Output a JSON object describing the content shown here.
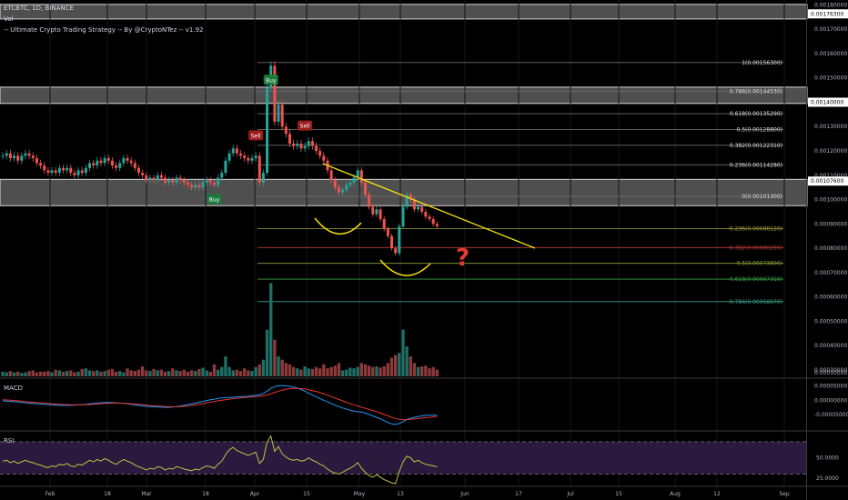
{
  "header": {
    "symbol": "ETCBTC, 1D, BINANCE",
    "vol": "Vol",
    "strategy": "-- Ultimate Crypto Trading Strategy -- By @CryptoNTez -- v1.92"
  },
  "panels": {
    "macd": "MACD",
    "rsi": "RSI"
  },
  "colors": {
    "up": "#26a69a",
    "down": "#ef5350",
    "trendline": "#f5e20b",
    "question": "#e53935",
    "arc": "#f5e20b",
    "zone": "#5d5d5d",
    "macd": "#2196f3",
    "signal": "#e53935",
    "rsi": "#c8c045",
    "rsi_band": "#2a1a3d"
  },
  "chart_data": [
    {
      "type": "candlestick",
      "title": "ETCBTC, 1D, BINANCE",
      "x_ticks": [
        "Feb",
        "18",
        "Mar",
        "18",
        "Apr",
        "15",
        "May",
        "13",
        "Jun",
        "17",
        "Jul",
        "15",
        "Aug",
        "12",
        "Sep"
      ],
      "y_ticks": [
        0.0003,
        0.0004,
        0.0005,
        0.0006,
        0.0007,
        0.0008,
        0.0009,
        0.001,
        0.0011,
        0.0012,
        0.0013,
        0.0014,
        0.0015,
        0.0016,
        0.0017,
        0.0018
      ],
      "y_tick_labels": [
        "0.00030000",
        "0.00040000",
        "0.00050000",
        "0.00060000",
        "0.00070000",
        "0.00080000",
        "0.00090000",
        "0.00100000",
        "0.00110000",
        "0.00120000",
        "0.00130000",
        "0.00140000",
        "0.00150000",
        "0.00160000",
        "0.00170000",
        "0.00180000"
      ],
      "ylim": [
        0.00027,
        0.00182
      ],
      "highlighted_prices": [
        {
          "value": 0.001763,
          "label": "0.00176300"
        },
        {
          "value": 0.0014,
          "label": "0.00140000"
        },
        {
          "value": 0.001076,
          "label": "0.00107600"
        }
      ],
      "fib_levels": [
        {
          "ratio": "1",
          "value": 0.001563,
          "label": "1(0.00156300)"
        },
        {
          "ratio": "0.786",
          "value": 0.0014453,
          "label": "0.786(0.00144530)"
        },
        {
          "ratio": "0.618",
          "value": 0.0013529,
          "label": "0.618(0.00135290)"
        },
        {
          "ratio": "0.5",
          "value": 0.001288,
          "label": "0.5(0.00128800)"
        },
        {
          "ratio": "0.382",
          "value": 0.0012231,
          "label": "0.382(0.00122310)"
        },
        {
          "ratio": "0.236",
          "value": 0.0011428,
          "label": "0.236(0.00114280)"
        },
        {
          "ratio": "0",
          "value": 0.001013,
          "label": "0(0.00101300)"
        },
        {
          "ratio": "-0.236",
          "value": 0.0008812,
          "label": "-0.236(0.00088120)"
        },
        {
          "ratio": "-0.382",
          "value": 0.0008029,
          "label": "-0.382(0.00080290)"
        },
        {
          "ratio": "-0.5",
          "value": 0.000738,
          "label": "-0.5(0.00073800)"
        },
        {
          "ratio": "-0.618",
          "value": 0.0006731,
          "label": "-0.618(0.00067310)"
        },
        {
          "ratio": "-0.786",
          "value": 0.0005807,
          "label": "-0.786(0.00058070)"
        }
      ],
      "zones": [
        {
          "from": 0.001742,
          "to": 0.001802
        },
        {
          "from": 0.001395,
          "to": 0.001462
        },
        {
          "from": 0.000975,
          "to": 0.001083
        }
      ],
      "signals": [
        {
          "label": "Buy",
          "index": 56
        },
        {
          "label": "Sell",
          "index": 67
        },
        {
          "label": "Buy",
          "index": 71
        },
        {
          "label": "Sell",
          "index": 80
        }
      ],
      "annotations": {
        "question_mark": "?"
      },
      "closes": [
        0.00118,
        0.00119,
        0.00117,
        0.00118,
        0.00116,
        0.00118,
        0.00119,
        0.00118,
        0.00117,
        0.00115,
        0.00114,
        0.00112,
        0.00111,
        0.00112,
        0.00111,
        0.00113,
        0.00112,
        0.00113,
        0.00111,
        0.0011,
        0.00112,
        0.00111,
        0.00113,
        0.00115,
        0.00114,
        0.00116,
        0.00115,
        0.00117,
        0.00116,
        0.00114,
        0.00113,
        0.00115,
        0.00117,
        0.00116,
        0.00115,
        0.00113,
        0.00111,
        0.0011,
        0.00108,
        0.00109,
        0.00108,
        0.0011,
        0.00109,
        0.00107,
        0.00108,
        0.00107,
        0.00109,
        0.00108,
        0.00107,
        0.00106,
        0.00105,
        0.00106,
        0.00105,
        0.00107,
        0.00108,
        0.00107,
        0.00106,
        0.00109,
        0.00111,
        0.00116,
        0.00119,
        0.00121,
        0.00119,
        0.00118,
        0.00117,
        0.00116,
        0.00117,
        0.00118,
        0.00107,
        0.00111,
        0.00146,
        0.00155,
        0.00132,
        0.00139,
        0.0013,
        0.00127,
        0.00123,
        0.00122,
        0.00123,
        0.00121,
        0.00122,
        0.00124,
        0.00122,
        0.0012,
        0.00118,
        0.00116,
        0.00112,
        0.00108,
        0.00105,
        0.00103,
        0.00104,
        0.00106,
        0.00107,
        0.00109,
        0.00112,
        0.00107,
        0.00102,
        0.00097,
        0.00094,
        0.00096,
        0.00092,
        0.00088,
        0.00085,
        0.0008,
        0.00078,
        0.00089,
        0.00097,
        0.00102,
        0.001,
        0.00096,
        0.00097,
        0.00095,
        0.00093,
        0.00092,
        0.0009,
        0.00089
      ]
    },
    {
      "type": "bar",
      "title": "Vol",
      "values": [
        7,
        6,
        8,
        6,
        7,
        5,
        6,
        8,
        9,
        6,
        7,
        7,
        8,
        6,
        10,
        9,
        7,
        8,
        9,
        6,
        7,
        11,
        12,
        9,
        8,
        9,
        7,
        8,
        10,
        11,
        7,
        8,
        6,
        12,
        9,
        8,
        10,
        15,
        9,
        8,
        11,
        9,
        10,
        7,
        8,
        12,
        9,
        8,
        10,
        7,
        9,
        8,
        11,
        13,
        9,
        7,
        18,
        10,
        14,
        30,
        14,
        9,
        10,
        8,
        12,
        9,
        8,
        14,
        18,
        25,
        70,
        140,
        55,
        30,
        25,
        20,
        18,
        14,
        12,
        10,
        15,
        12,
        11,
        14,
        12,
        18,
        12,
        14,
        16,
        20,
        9,
        10,
        13,
        12,
        14,
        20,
        18,
        16,
        14,
        15,
        13,
        15,
        20,
        28,
        32,
        35,
        70,
        45,
        30,
        20,
        14,
        15,
        16,
        12,
        14,
        10
      ],
      "y_tick_label": "0.00030000"
    },
    {
      "type": "line",
      "title": "MACD",
      "y_tick_labels": [
        "0.00005000",
        "0.00000000",
        "-0.00005000"
      ],
      "ylim": [
        -9.5e-05,
        6.5e-05
      ],
      "series": [
        {
          "values": [
            -2e-06,
            -3e-06,
            -4e-06,
            -5e-06,
            -6e-06,
            -8e-06,
            -9e-06,
            -1e-05,
            -1.1e-05,
            -1.2e-05,
            -1.3e-05,
            -1.4e-05,
            -1.5e-05,
            -1.6e-05,
            -1.7e-05,
            -1.8e-05,
            -1.8e-05,
            -1.8e-05,
            -1.8e-05,
            -1.7e-05,
            -1.6e-05,
            -1.5e-05,
            -1.4e-05,
            -1.2e-05,
            -1.1e-05,
            -1e-05,
            -9e-06,
            -8e-06,
            -8e-06,
            -8e-06,
            -9e-06,
            -1e-05,
            -1.1e-05,
            -1.2e-05,
            -1.4e-05,
            -1.6e-05,
            -1.8e-05,
            -2e-05,
            -2.1e-05,
            -2.2e-05,
            -2.3e-05,
            -2.4e-05,
            -2.4e-05,
            -2.5e-05,
            -2.5e-05,
            -2.4e-05,
            -2.2e-05,
            -2e-05,
            -1.8e-05,
            -1.5e-05,
            -1.2e-05,
            -1e-05,
            -7e-06,
            -4e-06,
            -1e-06,
            2e-06,
            4e-06,
            6e-06,
            8e-06,
            9e-06,
            1e-05,
            1.1e-05,
            1.2e-05,
            1.3e-05,
            1.3e-05,
            1.4e-05,
            1.6e-05,
            1.8e-05,
            2e-05,
            2.4e-05,
            3.2e-05,
            4.2e-05,
            4.8e-05,
            5.1e-05,
            5.2e-05,
            5.1e-05,
            4.9e-05,
            4.6e-05,
            4.3e-05,
            3.8e-05,
            3.2e-05,
            2.5e-05,
            1.8e-05,
            1.2e-05,
            6e-06,
            0.0,
            -5e-06,
            -1.1e-05,
            -1.7e-05,
            -2.2e-05,
            -2.7e-05,
            -3.1e-05,
            -3.5e-05,
            -3.8e-05,
            -4e-05,
            -4.2e-05,
            -4.5e-05,
            -5e-05,
            -5.5e-05,
            -6e-05,
            -6.5e-05,
            -7.2e-05,
            -7.8e-05,
            -8.3e-05,
            -8.5e-05,
            -8.2e-05,
            -7.5e-05,
            -6.8e-05,
            -6.3e-05,
            -6e-05,
            -5.7e-05,
            -5.5e-05,
            -5.3e-05,
            -5.2e-05,
            -5.2e-05,
            -5.2e-05
          ]
        },
        {
          "values": [
            2e-06,
            1e-06,
            0.0,
            -1e-06,
            -2e-06,
            -3e-06,
            -5e-06,
            -6e-06,
            -7e-06,
            -8e-06,
            -9e-06,
            -1e-05,
            -1.1e-05,
            -1.2e-05,
            -1.3e-05,
            -1.4e-05,
            -1.5e-05,
            -1.5e-05,
            -1.6e-05,
            -1.6e-05,
            -1.6e-05,
            -1.6e-05,
            -1.5e-05,
            -1.5e-05,
            -1.4e-05,
            -1.3e-05,
            -1.2e-05,
            -1.1e-05,
            -1.1e-05,
            -1e-05,
            -1e-05,
            -1e-05,
            -1.1e-05,
            -1.1e-05,
            -1.2e-05,
            -1.3e-05,
            -1.4e-05,
            -1.5e-05,
            -1.7e-05,
            -1.8e-05,
            -1.9e-05,
            -2e-05,
            -2.1e-05,
            -2.2e-05,
            -2.2e-05,
            -2.3e-05,
            -2.3e-05,
            -2.2e-05,
            -2.1e-05,
            -2e-05,
            -1.8e-05,
            -1.6e-05,
            -1.4e-05,
            -1.2e-05,
            -9e-06,
            -7e-06,
            -4e-06,
            -2e-06,
            0.0,
            2e-06,
            4e-06,
            6e-06,
            7e-06,
            9e-06,
            1e-05,
            1.1e-05,
            1.2e-05,
            1.3e-05,
            1.4e-05,
            1.6e-05,
            1.9e-05,
            2.3e-05,
            2.8e-05,
            3.2e-05,
            3.6e-05,
            3.9e-05,
            4.1e-05,
            4.2e-05,
            4.2e-05,
            4.1e-05,
            4e-05,
            3.7e-05,
            3.4e-05,
            3.1e-05,
            2.7e-05,
            2.3e-05,
            1.8e-05,
            1.3e-05,
            8e-06,
            3e-06,
            -2e-06,
            -7e-06,
            -1.2e-05,
            -1.6e-05,
            -2e-05,
            -2.4e-05,
            -2.8e-05,
            -3.2e-05,
            -3.6e-05,
            -4e-05,
            -4.5e-05,
            -5e-05,
            -5.5e-05,
            -6e-05,
            -6.4e-05,
            -6.7e-05,
            -6.8e-05,
            -6.8e-05,
            -6.7e-05,
            -6.6e-05,
            -6.4e-05,
            -6.3e-05,
            -6.1e-05,
            -6e-05,
            -5.8e-05,
            -5.7e-05
          ]
        }
      ]
    },
    {
      "type": "line",
      "title": "RSI",
      "y_tick_labels": [
        "50.0000",
        "25.0000"
      ],
      "ylim": [
        18,
        80
      ],
      "band": [
        30,
        70
      ],
      "values": [
        46,
        47,
        44,
        46,
        43,
        45,
        47,
        45,
        44,
        42,
        41,
        39,
        38,
        40,
        39,
        42,
        41,
        43,
        40,
        39,
        42,
        41,
        44,
        47,
        45,
        48,
        46,
        49,
        47,
        44,
        42,
        45,
        48,
        46,
        44,
        41,
        39,
        37,
        35,
        37,
        36,
        39,
        38,
        35,
        37,
        36,
        39,
        38,
        36,
        35,
        34,
        36,
        35,
        38,
        40,
        39,
        37,
        42,
        46,
        54,
        60,
        63,
        59,
        57,
        55,
        53,
        55,
        57,
        43,
        48,
        70,
        77,
        58,
        64,
        55,
        51,
        48,
        47,
        48,
        46,
        47,
        50,
        47,
        45,
        42,
        40,
        36,
        33,
        31,
        30,
        32,
        35,
        37,
        40,
        44,
        37,
        32,
        28,
        26,
        29,
        26,
        23,
        21,
        19,
        18,
        33,
        45,
        52,
        50,
        45,
        47,
        44,
        42,
        41,
        40,
        39
      ]
    }
  ]
}
